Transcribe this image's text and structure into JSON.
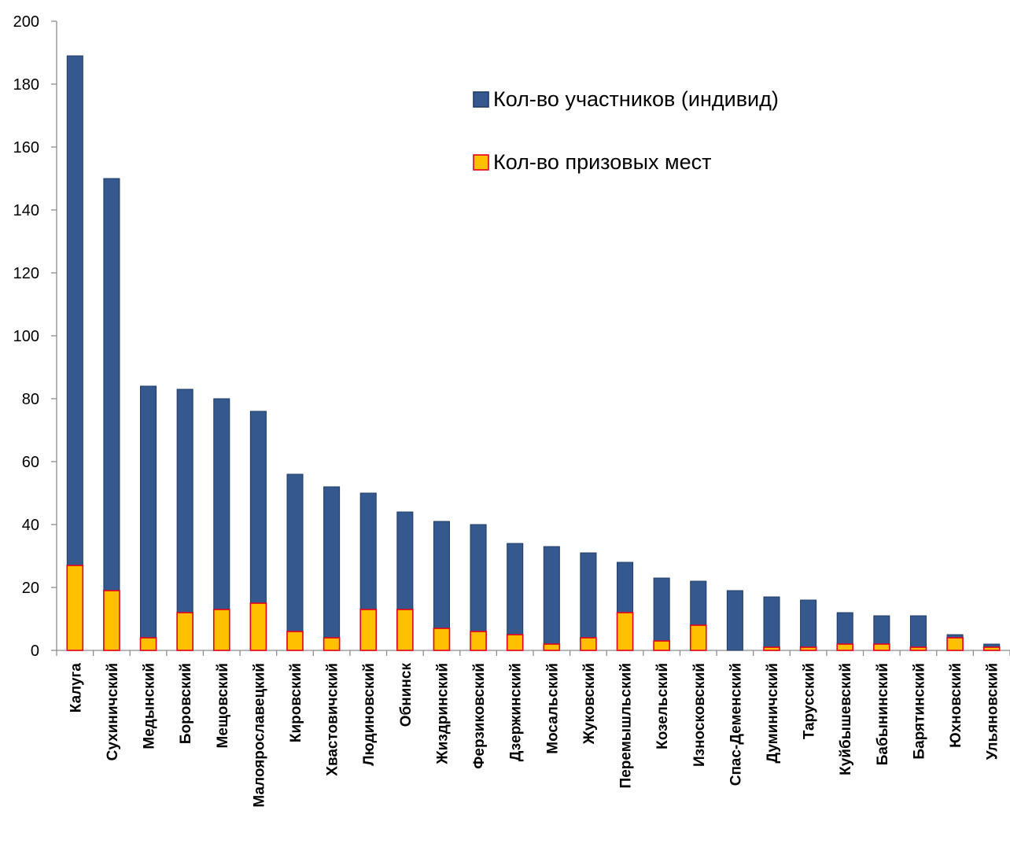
{
  "chart_data": {
    "type": "bar",
    "title": "",
    "xlabel": "",
    "ylabel": "",
    "ylim": [
      0,
      200
    ],
    "yticks": [
      0,
      20,
      40,
      60,
      80,
      100,
      120,
      140,
      160,
      180,
      200
    ],
    "grid": false,
    "legend_position": "top-right",
    "categories": [
      "Калуга",
      "Сухиничский",
      "Медынский",
      "Боровский",
      "Мещовский",
      "Малоярославецкий",
      "Кировский",
      "Хвастовичский",
      "Людиновский",
      "Обнинск",
      "Жиздринский",
      "Ферзиковский",
      "Дзержинский",
      "Мосальский",
      "Жуковский",
      "Перемышльский",
      "Козельский",
      "Износковский",
      "Спас-Деменский",
      "Думиничский",
      "Тарусский",
      "Куйбышевский",
      "Бабынинский",
      "Барятинский",
      "Юхновский",
      "Ульяновский"
    ],
    "series": [
      {
        "name": "Кол-во участников (индивид)",
        "color": "#35598F",
        "border": "#1F3A66",
        "values": [
          189,
          150,
          84,
          83,
          80,
          76,
          56,
          52,
          50,
          44,
          41,
          40,
          34,
          33,
          31,
          28,
          23,
          22,
          19,
          17,
          16,
          12,
          11,
          11,
          5,
          2
        ]
      },
      {
        "name": "Кол-во призовых мест",
        "color": "#FFC000",
        "border": "#E0001B",
        "values": [
          27,
          19,
          4,
          12,
          13,
          15,
          6,
          4,
          13,
          13,
          7,
          6,
          5,
          2,
          4,
          12,
          3,
          8,
          0,
          1,
          1,
          2,
          2,
          1,
          4,
          1
        ]
      }
    ]
  }
}
